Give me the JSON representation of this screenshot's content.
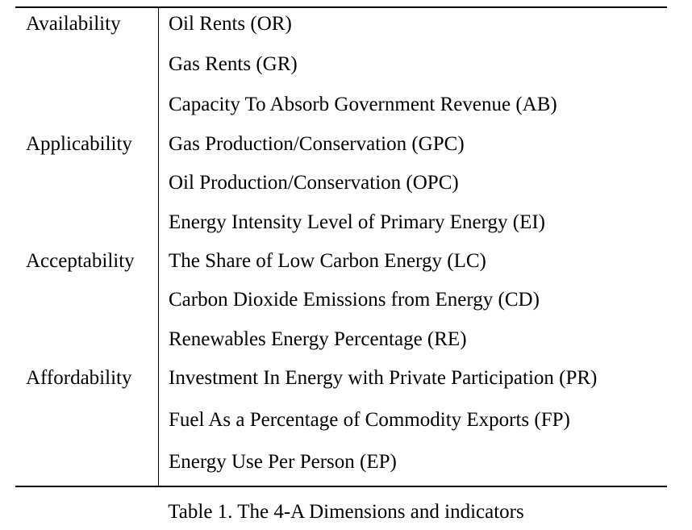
{
  "table": {
    "dimensions": [
      "Availability",
      "Applicability",
      "Acceptability",
      "Affordability"
    ],
    "indicators": [
      "Oil Rents (OR)",
      "Gas Rents (GR)",
      "Capacity To Absorb Government Revenue (AB)",
      "Gas Production/Conservation (GPC)",
      "Oil Production/Conservation (OPC)",
      "Energy Intensity Level of Primary Energy (EI)",
      "The Share of Low Carbon Energy (LC)",
      "Carbon Dioxide Emissions from Energy (CD)",
      "Renewables Energy Percentage (RE)",
      "Investment In Energy with Private Participation (PR)",
      "Fuel As a Percentage of Commodity Exports (FP)",
      "Energy Use Per Person (EP)"
    ]
  },
  "caption": "Table 1. The 4-A Dimensions and indicators"
}
